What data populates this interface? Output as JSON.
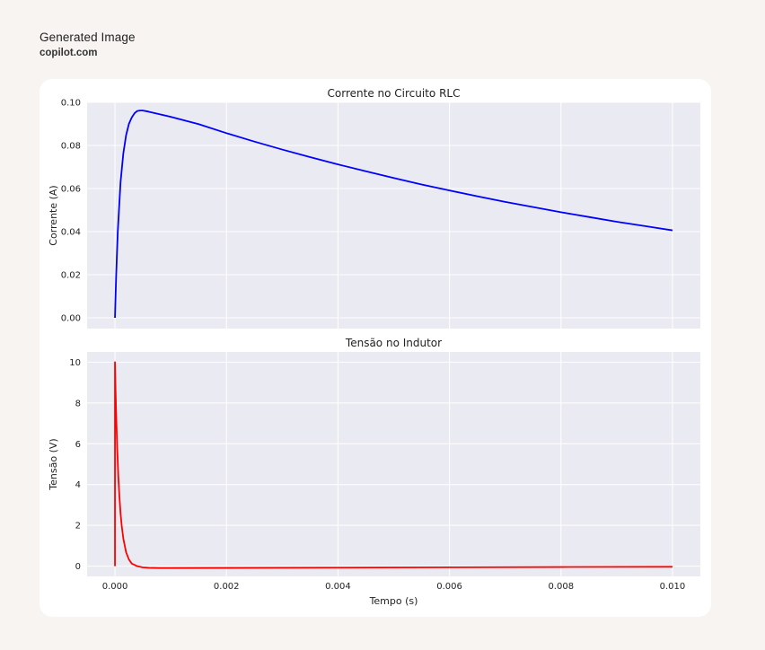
{
  "header": {
    "title": "Generated Image",
    "source": "copilot.com"
  },
  "chart_data": [
    {
      "type": "line",
      "title": "Corrente no Circuito RLC",
      "xlabel": "",
      "ylabel": "Corrente (A)",
      "xlim": [
        -0.0005,
        0.0105
      ],
      "ylim": [
        -0.005,
        0.1
      ],
      "grid": true,
      "xticks": [
        0,
        0.002,
        0.004,
        0.006,
        0.008,
        0.01
      ],
      "yticks": [
        0,
        0.02,
        0.04,
        0.06,
        0.08,
        0.1
      ],
      "yticklabels": [
        "0.00",
        "0.02",
        "0.04",
        "0.06",
        "0.08",
        "0.10"
      ],
      "series": [
        {
          "color": "#0000ff",
          "x": [
            0,
            2e-05,
            5e-05,
            0.0001,
            0.00015,
            0.0002,
            0.00025,
            0.0003,
            0.00035,
            0.0004,
            0.00045,
            0.0005,
            0.0006,
            0.0008,
            0.001,
            0.0015,
            0.002,
            0.0025,
            0.003,
            0.0035,
            0.004,
            0.0045,
            0.005,
            0.0055,
            0.006,
            0.0065,
            0.007,
            0.0075,
            0.008,
            0.0085,
            0.009,
            0.0095,
            0.01
          ],
          "y": [
            0,
            0.0185,
            0.0398,
            0.0629,
            0.0763,
            0.0848,
            0.09,
            0.0929,
            0.0949,
            0.096,
            0.0962,
            0.0962,
            0.0957,
            0.0945,
            0.0933,
            0.0899,
            0.0857,
            0.0818,
            0.0781,
            0.0746,
            0.0712,
            0.068,
            0.0649,
            0.0619,
            0.0591,
            0.0564,
            0.0538,
            0.0514,
            0.049,
            0.0468,
            0.0446,
            0.0426,
            0.0406
          ]
        }
      ]
    },
    {
      "type": "line",
      "title": "Tensão no Indutor",
      "xlabel": "Tempo (s)",
      "ylabel": "Tensão (V)",
      "xlim": [
        -0.0005,
        0.0105
      ],
      "ylim": [
        -0.5,
        10.5
      ],
      "grid": true,
      "xticks": [
        0,
        0.002,
        0.004,
        0.006,
        0.008,
        0.01
      ],
      "xticklabels": [
        "0.000",
        "0.002",
        "0.004",
        "0.006",
        "0.008",
        "0.010"
      ],
      "yticks": [
        0,
        2,
        4,
        6,
        8,
        10
      ],
      "yticklabels": [
        "0",
        "2",
        "4",
        "6",
        "8",
        "10"
      ],
      "series": [
        {
          "color": "#ff0000",
          "x": [
            0,
            0,
            1e-05,
            2e-05,
            4e-05,
            6e-05,
            8e-05,
            0.0001,
            0.00012,
            0.00015,
            0.0002,
            0.00025,
            0.0003,
            0.0004,
            0.0005,
            0.0006,
            0.0008,
            0.001,
            0.002,
            0.004,
            0.006,
            0.008,
            0.01
          ],
          "y": [
            0,
            10,
            8.7,
            7.6,
            5.8,
            4.4,
            3.4,
            2.6,
            2.0,
            1.35,
            0.68,
            0.33,
            0.13,
            0.0,
            -0.06,
            -0.08,
            -0.09,
            -0.09,
            -0.085,
            -0.07,
            -0.055,
            -0.04,
            -0.03
          ]
        }
      ]
    }
  ]
}
